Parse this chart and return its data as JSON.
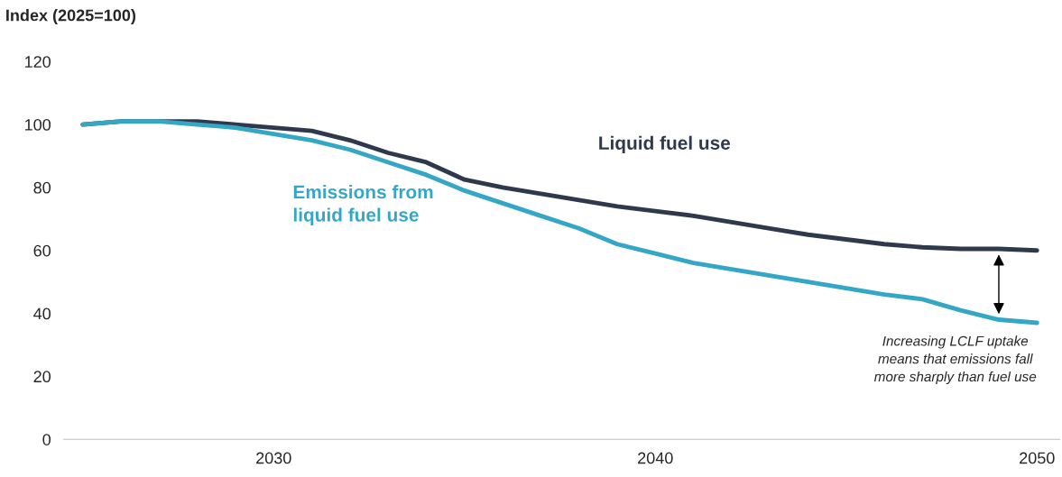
{
  "chart_data": {
    "type": "line",
    "ylabel": "Index (2025=100)",
    "x": [
      2025,
      2026,
      2027,
      2028,
      2029,
      2030,
      2031,
      2032,
      2033,
      2034,
      2035,
      2036,
      2037,
      2038,
      2039,
      2040,
      2041,
      2042,
      2043,
      2044,
      2045,
      2046,
      2047,
      2048,
      2049,
      2050
    ],
    "series": [
      {
        "name": "Liquid fuel use",
        "color": "#2e3a4b",
        "values": [
          100,
          101,
          101,
          101,
          100,
          99,
          98,
          95,
          91,
          88,
          82.5,
          80,
          78,
          76,
          74,
          72.5,
          71,
          69,
          67,
          65,
          63.5,
          62,
          61,
          60.5,
          60.5,
          60
        ]
      },
      {
        "name": "Emissions from\nliquid fuel use",
        "color": "#35a7c6",
        "values": [
          100,
          101,
          101,
          100,
          99,
          97,
          95,
          92,
          88,
          84,
          79,
          75,
          71,
          67,
          62,
          59,
          56,
          54,
          52,
          50,
          48,
          46,
          44.5,
          41,
          38,
          37
        ]
      }
    ],
    "xlim": [
      2024.5,
      2050.6
    ],
    "xticks": [
      2030,
      2040,
      2050
    ],
    "ylim": [
      0,
      120
    ],
    "yticks": [
      0,
      20,
      40,
      60,
      80,
      100,
      120
    ],
    "grid": false,
    "legend": false,
    "marker": "none",
    "line_style": "solid",
    "annotations": [
      "Increasing LCLF uptake\nmeans that emissions fall\nmore sharply than fuel use"
    ]
  }
}
